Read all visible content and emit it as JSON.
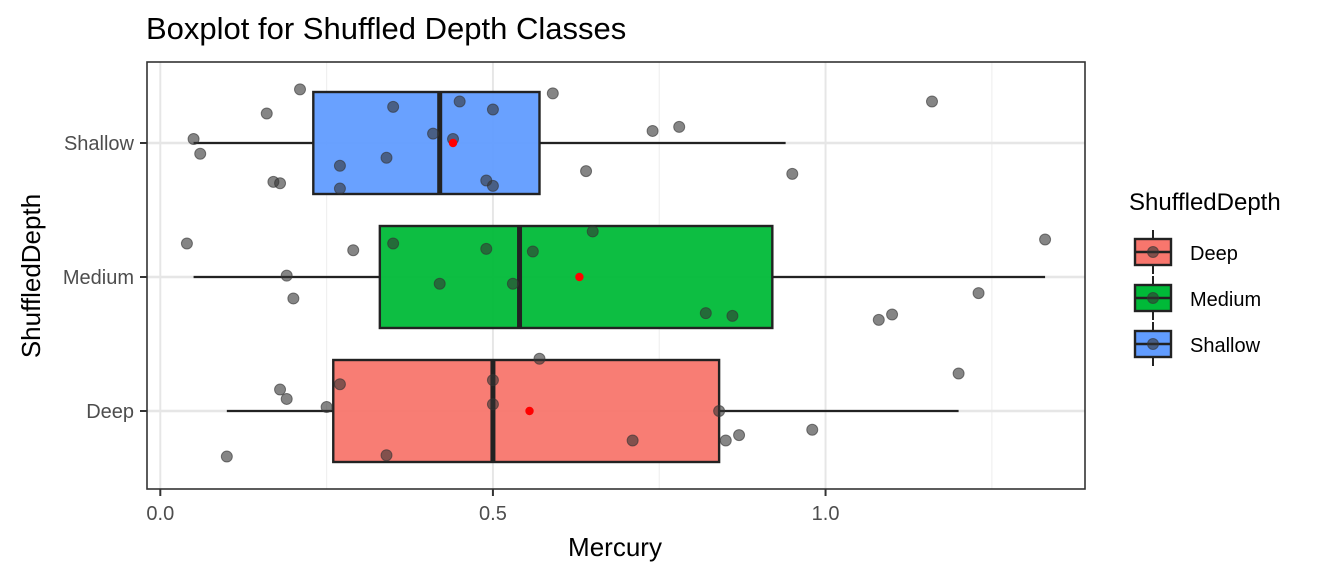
{
  "chart_data": {
    "type": "boxplot",
    "title": "Boxplot for Shuffled Depth Classes",
    "xlabel": "Mercury",
    "ylabel": "ShuffledDepth",
    "xlim": [
      -0.02,
      1.39
    ],
    "x_ticks": [
      0.0,
      0.5,
      1.0
    ],
    "x_tick_labels": [
      "0.0",
      "0.5",
      "1.0"
    ],
    "categories": [
      "Deep",
      "Medium",
      "Shallow"
    ],
    "grid": true,
    "legend": {
      "title": "ShuffledDepth",
      "position": "right"
    },
    "colors": {
      "Deep": "#F8766D",
      "Medium": "#00BA38",
      "Shallow": "#619CFF",
      "mean": "#FF0000",
      "points": "#333333",
      "outline": "#222222"
    },
    "series": [
      {
        "name": "Deep",
        "box": {
          "whisker_low": 0.1,
          "q1": 0.26,
          "median": 0.5,
          "q3": 0.84,
          "whisker_high": 1.2
        },
        "mean": 0.555,
        "points": [
          {
            "x": 0.1,
            "y": -0.34
          },
          {
            "x": 0.18,
            "y": 0.16
          },
          {
            "x": 0.19,
            "y": 0.09
          },
          {
            "x": 0.25,
            "y": 0.03
          },
          {
            "x": 0.27,
            "y": 0.2
          },
          {
            "x": 0.34,
            "y": -0.33
          },
          {
            "x": 0.5,
            "y": 0.23
          },
          {
            "x": 0.5,
            "y": 0.05
          },
          {
            "x": 0.57,
            "y": 0.39
          },
          {
            "x": 0.71,
            "y": -0.22
          },
          {
            "x": 0.84,
            "y": 0.0
          },
          {
            "x": 0.85,
            "y": -0.22
          },
          {
            "x": 0.87,
            "y": -0.18
          },
          {
            "x": 0.98,
            "y": -0.14
          },
          {
            "x": 1.2,
            "y": 0.28
          }
        ]
      },
      {
        "name": "Medium",
        "box": {
          "whisker_low": 0.05,
          "q1": 0.33,
          "median": 0.54,
          "q3": 0.92,
          "whisker_high": 1.33
        },
        "mean": 0.63,
        "points": [
          {
            "x": 0.04,
            "y": 0.25
          },
          {
            "x": 0.19,
            "y": 0.01
          },
          {
            "x": 0.2,
            "y": -0.16
          },
          {
            "x": 0.29,
            "y": 0.2
          },
          {
            "x": 0.35,
            "y": 0.25
          },
          {
            "x": 0.42,
            "y": -0.05
          },
          {
            "x": 0.49,
            "y": 0.21
          },
          {
            "x": 0.53,
            "y": -0.05
          },
          {
            "x": 0.56,
            "y": 0.19
          },
          {
            "x": 0.65,
            "y": 0.34
          },
          {
            "x": 0.82,
            "y": -0.27
          },
          {
            "x": 0.86,
            "y": -0.29
          },
          {
            "x": 1.08,
            "y": -0.32
          },
          {
            "x": 1.1,
            "y": -0.28
          },
          {
            "x": 1.23,
            "y": -0.12
          },
          {
            "x": 1.33,
            "y": 0.28
          }
        ]
      },
      {
        "name": "Shallow",
        "box": {
          "whisker_low": 0.05,
          "q1": 0.23,
          "median": 0.42,
          "q3": 0.57,
          "whisker_high": 0.94
        },
        "mean": 0.44,
        "points": [
          {
            "x": 0.05,
            "y": 0.03
          },
          {
            "x": 0.06,
            "y": -0.08
          },
          {
            "x": 0.16,
            "y": 0.22
          },
          {
            "x": 0.17,
            "y": -0.29
          },
          {
            "x": 0.18,
            "y": -0.3
          },
          {
            "x": 0.21,
            "y": 0.4
          },
          {
            "x": 0.27,
            "y": -0.17
          },
          {
            "x": 0.27,
            "y": -0.34
          },
          {
            "x": 0.34,
            "y": -0.11
          },
          {
            "x": 0.35,
            "y": 0.27
          },
          {
            "x": 0.41,
            "y": 0.07
          },
          {
            "x": 0.44,
            "y": 0.03
          },
          {
            "x": 0.45,
            "y": 0.31
          },
          {
            "x": 0.49,
            "y": -0.28
          },
          {
            "x": 0.5,
            "y": 0.25
          },
          {
            "x": 0.5,
            "y": -0.32
          },
          {
            "x": 0.59,
            "y": 0.37
          },
          {
            "x": 0.64,
            "y": -0.21
          },
          {
            "x": 0.74,
            "y": 0.09
          },
          {
            "x": 0.78,
            "y": 0.12
          },
          {
            "x": 0.95,
            "y": -0.23
          },
          {
            "x": 1.16,
            "y": 0.31
          }
        ]
      }
    ]
  }
}
